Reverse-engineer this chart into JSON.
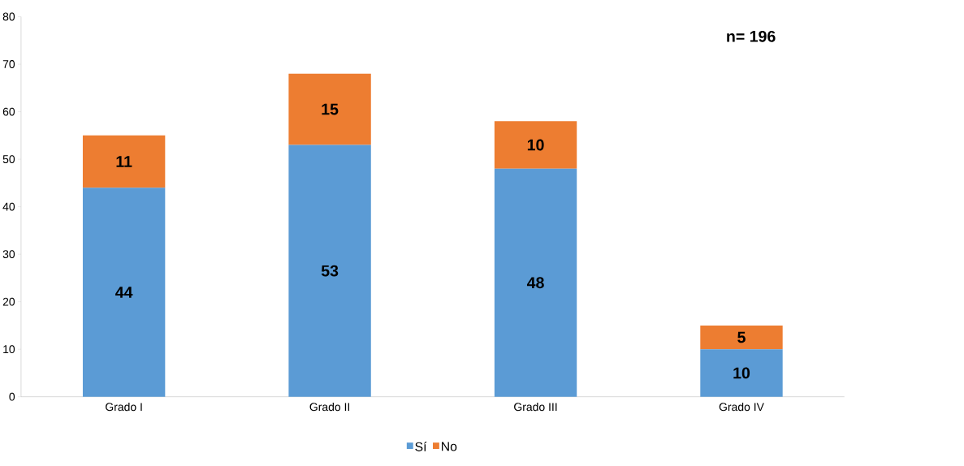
{
  "chart_data": {
    "type": "bar",
    "stacked": true,
    "categories": [
      "Grado I",
      "Grado II",
      "Grado III",
      "Grado IV"
    ],
    "series": [
      {
        "name": "Sí",
        "color": "#5b9bd5",
        "values": [
          44,
          53,
          48,
          10
        ]
      },
      {
        "name": "No",
        "color": "#ed7d31",
        "values": [
          11,
          15,
          10,
          5
        ]
      }
    ],
    "ylim": [
      0,
      80
    ],
    "yticks": [
      0,
      10,
      20,
      30,
      40,
      50,
      60,
      70,
      80
    ],
    "data_labels": true,
    "legend": "bottom",
    "grid": false,
    "annotations": [
      "n= 196"
    ]
  }
}
